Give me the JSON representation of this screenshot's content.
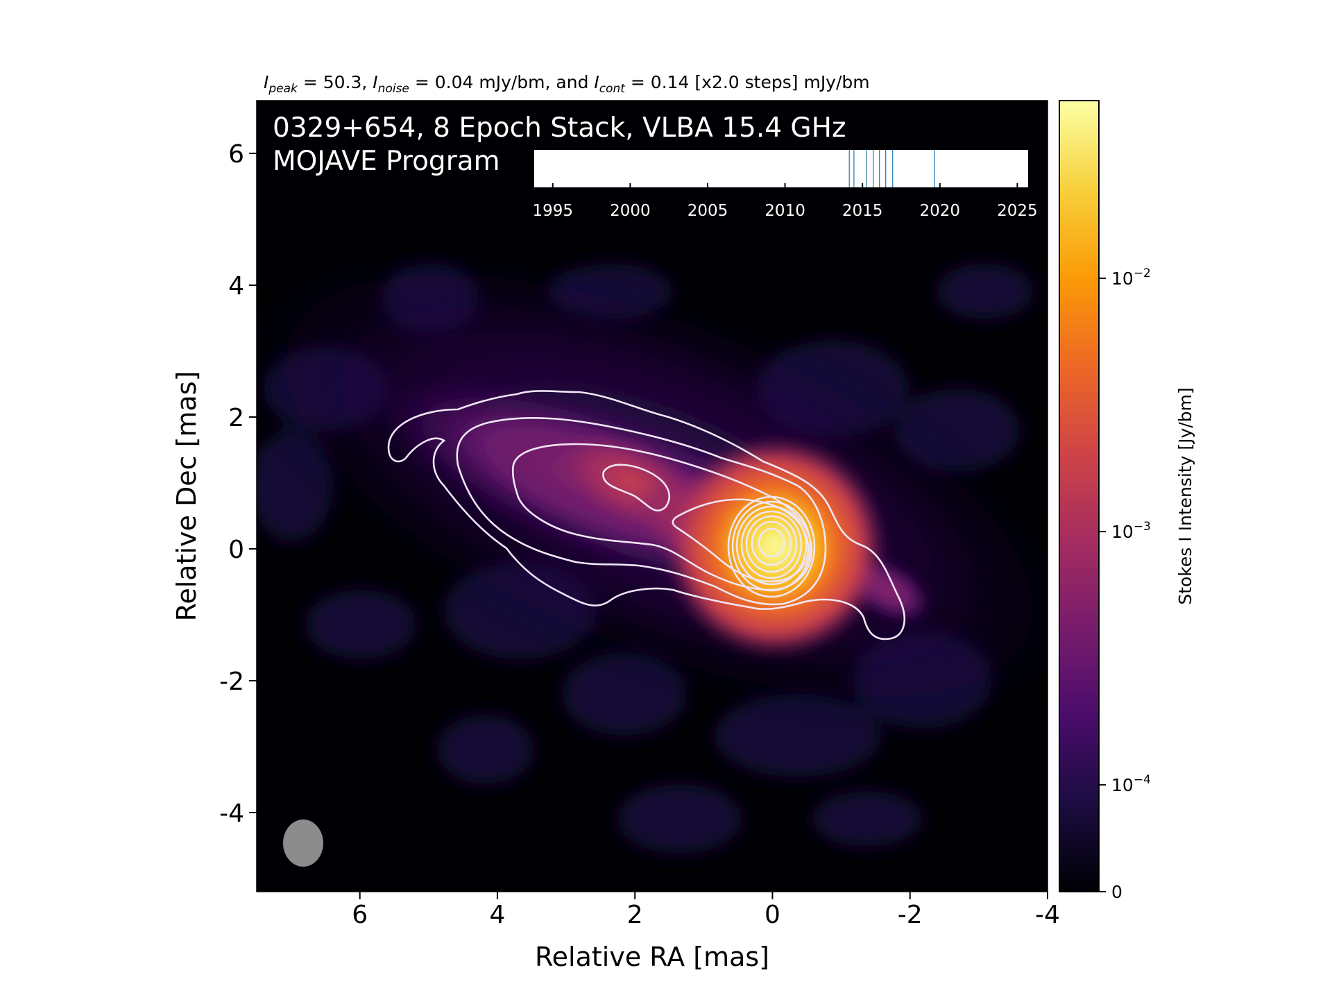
{
  "header": {
    "i_peak_label": "I",
    "i_peak_sub": "peak",
    "i_peak_text": " = 50.3, ",
    "i_noise_label": "I",
    "i_noise_sub": "noise",
    "i_noise_text": " = 0.04 mJy/bm, and ",
    "i_cont_label": "I",
    "i_cont_sub": "cont",
    "i_cont_text": " = 0.14 [x2.0 steps] mJy/bm"
  },
  "overlay": {
    "line1": "0329+654, 8 Epoch Stack, VLBA 15.4 GHz",
    "line2": "MOJAVE Program"
  },
  "colors": {
    "background": "#000004",
    "contour": "#f0e6f6",
    "epoch_line": "#1f77b4",
    "beam": "#8c8c8c",
    "text_on_image": "#ffffff"
  },
  "colormap": {
    "name": "inferno",
    "stops": [
      "#000004",
      "#1b0c41",
      "#4a0c6b",
      "#781c6d",
      "#a52c60",
      "#cf4446",
      "#ed6925",
      "#fb9b06",
      "#f7d13d",
      "#fcffa4"
    ]
  },
  "chart_data": {
    "type": "heatmap",
    "xlabel": "Relative RA [mas]",
    "ylabel": "Relative Dec [mas]",
    "xlim": [
      7.5,
      -4.0
    ],
    "ylim": [
      -5.2,
      6.8
    ],
    "x_ticks": [
      6,
      4,
      2,
      0,
      -2,
      -4
    ],
    "x_tick_labels": [
      "6",
      "4",
      "2",
      "0",
      "-2",
      "-4"
    ],
    "y_ticks": [
      6,
      4,
      2,
      0,
      -2,
      -4
    ],
    "y_tick_labels": [
      "6",
      "4",
      "2",
      "0",
      "-2",
      "-4"
    ],
    "peak_intensity_mJy_per_beam": 50.3,
    "noise_mJy_per_beam": 0.04,
    "lowest_contour_mJy_per_beam": 0.14,
    "contour_step_factor": 2.0,
    "contour_levels_mJy_per_beam": [
      0.14,
      0.28,
      0.56,
      1.12,
      2.24,
      4.48,
      8.96,
      17.92,
      35.84
    ],
    "epochs": 8,
    "colorbar": {
      "label": "Stokes I Intensity [Jy/bm]",
      "scale": "log",
      "ticks": [
        0,
        0.0001,
        0.001,
        0.01
      ],
      "tick_labels": [
        {
          "base": "0",
          "exp": ""
        },
        {
          "base": "10",
          "exp": "−4"
        },
        {
          "base": "10",
          "exp": "−3"
        },
        {
          "base": "10",
          "exp": "−2"
        }
      ]
    },
    "epoch_timeline": {
      "xlim": [
        1993.8,
        2025.7
      ],
      "ticks": [
        1995,
        2000,
        2005,
        2010,
        2015,
        2020,
        2025
      ],
      "tick_labels": [
        "1995",
        "2000",
        "2005",
        "2010",
        "2015",
        "2020",
        "2025"
      ],
      "epochs": [
        2014.15,
        2014.45,
        2015.25,
        2015.7,
        2016.1,
        2016.5,
        2016.95,
        2019.65
      ]
    }
  }
}
